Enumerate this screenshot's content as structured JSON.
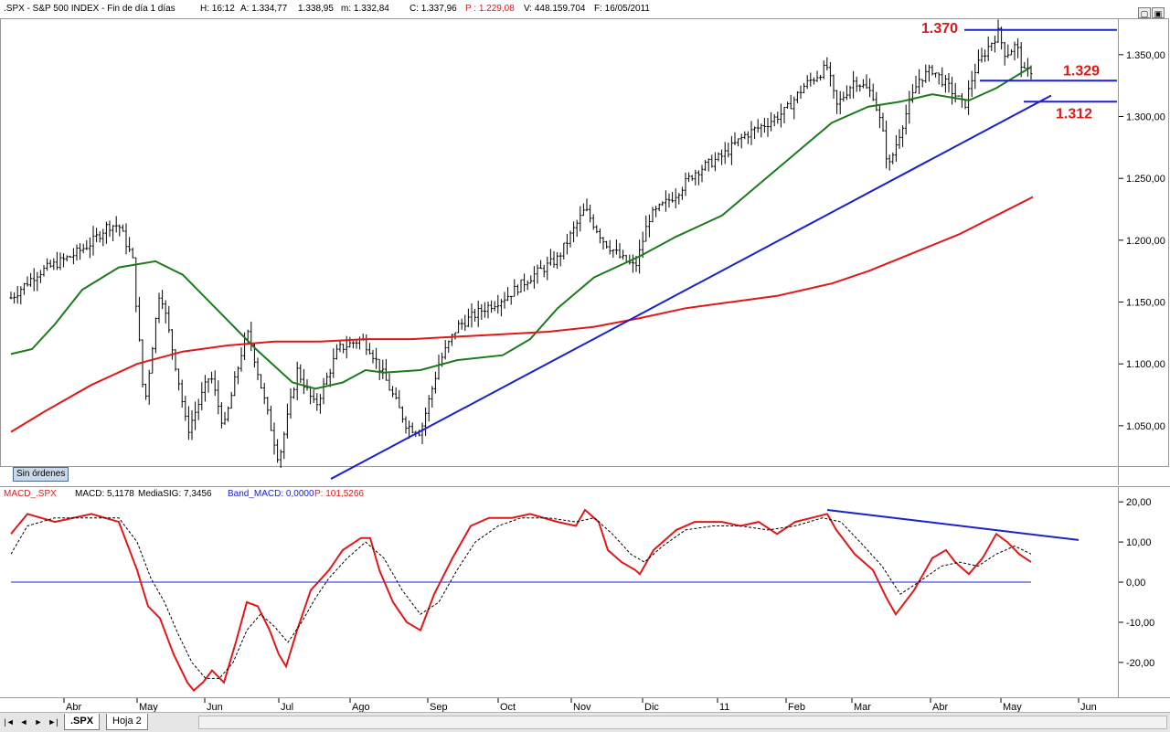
{
  "price_header": {
    "symbol": ".SPX - S&P 500 INDEX - Fin de día 1 días",
    "time": "H: 16:12",
    "open": "A: 1.334,77",
    "high": "1.338,95",
    "low": "m: 1.332,84",
    "close": "C: 1.337,96",
    "pointer": "P : 1.229,08",
    "volume": "V: 448.159.704",
    "date": "F: 16/05/2011"
  },
  "macd_header": {
    "indicator": "MACD_.SPX",
    "macd": "MACD: 5,1178",
    "signal": "MediaSIG: 7,3456",
    "band": "Band_MACD: 0,0000",
    "pointer": "P: 101,5266"
  },
  "orders_badge": "Sin órdenes",
  "sheet_tabs": [
    ".SPX",
    "Hoja 2"
  ],
  "nav_buttons": [
    "|◄",
    "◄",
    "►",
    "►|"
  ],
  "window_buttons": [
    "▢",
    "▣"
  ],
  "colors": {
    "ma_fast": "#1c7a1c",
    "ma_slow": "#e01818",
    "trendline": "#1a22cc",
    "macd": "#e01818",
    "signal": "#000000",
    "annotation": "#e01818"
  },
  "chart_data": [
    {
      "type": "candlestick",
      "title": "",
      "x": [
        "Abr",
        "May",
        "Jun",
        "Jul",
        "Ago",
        "Sep",
        "Oct",
        "Nov",
        "Dic",
        "11",
        "Feb",
        "Mar",
        "Abr",
        "May",
        "Jun"
      ],
      "ylim": [
        1010,
        1375
      ],
      "y_ticks": [
        "1.050,00",
        "1.100,00",
        "1.150,00",
        "1.200,00",
        "1.250,00",
        "1.300,00",
        "1.350,00"
      ],
      "y_tick_values": [
        1050,
        1100,
        1150,
        1200,
        1250,
        1300,
        1350
      ],
      "close_path": [
        [
          0,
          1145
        ],
        [
          40,
          1173
        ],
        [
          80,
          1188
        ],
        [
          100,
          1198
        ],
        [
          118,
          1212
        ],
        [
          130,
          1212
        ],
        [
          145,
          1185
        ],
        [
          158,
          1065
        ],
        [
          175,
          1162
        ],
        [
          195,
          1088
        ],
        [
          205,
          1045
        ],
        [
          230,
          1092
        ],
        [
          245,
          1048
        ],
        [
          265,
          1112
        ],
        [
          272,
          1125
        ],
        [
          290,
          1068
        ],
        [
          305,
          1022
        ],
        [
          325,
          1095
        ],
        [
          345,
          1065
        ],
        [
          370,
          1112
        ],
        [
          395,
          1120
        ],
        [
          405,
          1112
        ],
        [
          420,
          1090
        ],
        [
          445,
          1050
        ],
        [
          460,
          1045
        ],
        [
          480,
          1100
        ],
        [
          500,
          1130
        ],
        [
          530,
          1145
        ],
        [
          555,
          1155
        ],
        [
          580,
          1170
        ],
        [
          610,
          1185
        ],
        [
          640,
          1225
        ],
        [
          660,
          1200
        ],
        [
          680,
          1185
        ],
        [
          695,
          1178
        ],
        [
          710,
          1218
        ],
        [
          740,
          1238
        ],
        [
          760,
          1255
        ],
        [
          790,
          1268
        ],
        [
          815,
          1285
        ],
        [
          840,
          1295
        ],
        [
          860,
          1305
        ],
        [
          880,
          1325
        ],
        [
          905,
          1340
        ],
        [
          915,
          1308
        ],
        [
          935,
          1330
        ],
        [
          955,
          1318
        ],
        [
          965,
          1290
        ],
        [
          972,
          1258
        ],
        [
          990,
          1300
        ],
        [
          1005,
          1330
        ],
        [
          1020,
          1338
        ],
        [
          1040,
          1322
        ],
        [
          1055,
          1308
        ],
        [
          1065,
          1335
        ],
        [
          1080,
          1355
        ],
        [
          1092,
          1368
        ],
        [
          1100,
          1350
        ],
        [
          1112,
          1358
        ],
        [
          1120,
          1335
        ],
        [
          1130,
          1338
        ]
      ],
      "overlays": [
        {
          "name": "",
          "color": "#1c7a1c",
          "points": [
            [
              12,
              1108
            ],
            [
              35,
              1112
            ],
            [
              60,
              1132
            ],
            [
              90,
              1160
            ],
            [
              130,
              1178
            ],
            [
              170,
              1183
            ],
            [
              200,
              1172
            ],
            [
              240,
              1142
            ],
            [
              280,
              1112
            ],
            [
              320,
              1085
            ],
            [
              345,
              1080
            ],
            [
              375,
              1085
            ],
            [
              400,
              1095
            ],
            [
              420,
              1093
            ],
            [
              460,
              1095
            ],
            [
              500,
              1103
            ],
            [
              550,
              1107
            ],
            [
              580,
              1120
            ],
            [
              610,
              1145
            ],
            [
              650,
              1170
            ],
            [
              700,
              1187
            ],
            [
              740,
              1203
            ],
            [
              790,
              1220
            ],
            [
              830,
              1245
            ],
            [
              870,
              1270
            ],
            [
              910,
              1295
            ],
            [
              950,
              1308
            ],
            [
              985,
              1312
            ],
            [
              1020,
              1318
            ],
            [
              1060,
              1313
            ],
            [
              1090,
              1323
            ],
            [
              1110,
              1332
            ],
            [
              1128,
              1340
            ]
          ]
        },
        {
          "name": "",
          "color": "#e01818",
          "points": [
            [
              12,
              1045
            ],
            [
              50,
              1062
            ],
            [
              100,
              1083
            ],
            [
              150,
              1100
            ],
            [
              200,
              1110
            ],
            [
              250,
              1115
            ],
            [
              300,
              1118
            ],
            [
              350,
              1118
            ],
            [
              400,
              1120
            ],
            [
              450,
              1120
            ],
            [
              500,
              1122
            ],
            [
              550,
              1124
            ],
            [
              600,
              1126
            ],
            [
              650,
              1130
            ],
            [
              700,
              1137
            ],
            [
              750,
              1145
            ],
            [
              800,
              1150
            ],
            [
              850,
              1155
            ],
            [
              880,
              1160
            ],
            [
              910,
              1165
            ],
            [
              950,
              1175
            ],
            [
              1000,
              1190
            ],
            [
              1050,
              1205
            ],
            [
              1090,
              1220
            ],
            [
              1130,
              1235
            ]
          ]
        }
      ],
      "trendlines": [
        {
          "color": "#1a22cc",
          "points": [
            [
              362,
              1007
            ],
            [
              1150,
              1317
            ]
          ]
        },
        {
          "color": "#1a22cc",
          "points": [
            [
              1055,
              1370
            ],
            [
              1222,
              1370
            ]
          ]
        },
        {
          "color": "#1a22cc",
          "points": [
            [
              1072,
              1329
            ],
            [
              1222,
              1329
            ]
          ]
        },
        {
          "color": "#1a22cc",
          "points": [
            [
              1120,
              1312
            ],
            [
              1222,
              1312
            ]
          ]
        }
      ],
      "annotations": [
        {
          "text": "1.370",
          "value": 1370
        },
        {
          "text": "1.329",
          "value": 1329
        },
        {
          "text": "1.312",
          "value": 1312
        }
      ]
    },
    {
      "type": "line",
      "title": "",
      "ylim": [
        -28,
        23
      ],
      "y_ticks": [
        "20,00",
        "10,00",
        "0,00",
        "-10,00",
        "-20,00"
      ],
      "y_tick_values": [
        20,
        10,
        0,
        -10,
        -20
      ],
      "series": [
        {
          "name": "MACD",
          "color": "#e01818",
          "points": [
            [
              12,
              12
            ],
            [
              30,
              17
            ],
            [
              60,
              15
            ],
            [
              100,
              17
            ],
            [
              130,
              15
            ],
            [
              150,
              3
            ],
            [
              162,
              -6
            ],
            [
              175,
              -9
            ],
            [
              190,
              -18
            ],
            [
              205,
              -25
            ],
            [
              212,
              -27
            ],
            [
              222,
              -25
            ],
            [
              232,
              -22
            ],
            [
              245,
              -25
            ],
            [
              258,
              -15
            ],
            [
              270,
              -5
            ],
            [
              282,
              -6
            ],
            [
              295,
              -12
            ],
            [
              305,
              -18
            ],
            [
              313,
              -21
            ],
            [
              325,
              -12
            ],
            [
              340,
              -2
            ],
            [
              360,
              3
            ],
            [
              375,
              8
            ],
            [
              395,
              11
            ],
            [
              405,
              11
            ],
            [
              415,
              3
            ],
            [
              430,
              -5
            ],
            [
              445,
              -10
            ],
            [
              460,
              -12
            ],
            [
              475,
              -3
            ],
            [
              495,
              6
            ],
            [
              515,
              14
            ],
            [
              535,
              16
            ],
            [
              560,
              16
            ],
            [
              580,
              17
            ],
            [
              610,
              15
            ],
            [
              630,
              14
            ],
            [
              640,
              18
            ],
            [
              655,
              15
            ],
            [
              665,
              8
            ],
            [
              680,
              5
            ],
            [
              695,
              3
            ],
            [
              700,
              2
            ],
            [
              715,
              8
            ],
            [
              740,
              13
            ],
            [
              760,
              15
            ],
            [
              790,
              15
            ],
            [
              810,
              14
            ],
            [
              830,
              15
            ],
            [
              850,
              12
            ],
            [
              870,
              15
            ],
            [
              905,
              17
            ],
            [
              915,
              13
            ],
            [
              935,
              7
            ],
            [
              955,
              3
            ],
            [
              970,
              -4
            ],
            [
              980,
              -8
            ],
            [
              1000,
              -2
            ],
            [
              1020,
              6
            ],
            [
              1035,
              8
            ],
            [
              1045,
              5
            ],
            [
              1060,
              2
            ],
            [
              1075,
              6
            ],
            [
              1090,
              12
            ],
            [
              1102,
              10
            ],
            [
              1115,
              7
            ],
            [
              1128,
              5
            ]
          ]
        },
        {
          "name": "MediaSIG",
          "color": "#000000",
          "points": [
            [
              12,
              7
            ],
            [
              30,
              14
            ],
            [
              60,
              16
            ],
            [
              100,
              16
            ],
            [
              130,
              16
            ],
            [
              150,
              10
            ],
            [
              165,
              1
            ],
            [
              180,
              -5
            ],
            [
              195,
              -13
            ],
            [
              210,
              -20
            ],
            [
              225,
              -24
            ],
            [
              240,
              -24
            ],
            [
              255,
              -20
            ],
            [
              270,
              -12
            ],
            [
              285,
              -8
            ],
            [
              300,
              -11
            ],
            [
              315,
              -15
            ],
            [
              330,
              -10
            ],
            [
              345,
              -4
            ],
            [
              360,
              1
            ],
            [
              380,
              6
            ],
            [
              400,
              10
            ],
            [
              420,
              6
            ],
            [
              440,
              -2
            ],
            [
              460,
              -8
            ],
            [
              480,
              -5
            ],
            [
              500,
              3
            ],
            [
              520,
              10
            ],
            [
              545,
              14
            ],
            [
              570,
              16
            ],
            [
              600,
              16
            ],
            [
              630,
              15
            ],
            [
              650,
              16
            ],
            [
              670,
              12
            ],
            [
              690,
              7
            ],
            [
              705,
              5
            ],
            [
              725,
              9
            ],
            [
              750,
              13
            ],
            [
              780,
              14
            ],
            [
              810,
              14
            ],
            [
              840,
              13
            ],
            [
              870,
              14
            ],
            [
              900,
              16
            ],
            [
              920,
              15
            ],
            [
              945,
              9
            ],
            [
              965,
              4
            ],
            [
              985,
              -3
            ],
            [
              1005,
              0
            ],
            [
              1030,
              4
            ],
            [
              1050,
              5
            ],
            [
              1070,
              4
            ],
            [
              1090,
              7
            ],
            [
              1110,
              9
            ],
            [
              1128,
              7
            ]
          ]
        }
      ],
      "trendlines": [
        {
          "color": "#1a22cc",
          "points": [
            [
              905,
              18
            ],
            [
              1180,
              10.5
            ]
          ]
        },
        {
          "color": "#1a22cc",
          "points": [
            [
              12,
              0
            ],
            [
              1128,
              0
            ]
          ]
        }
      ]
    }
  ]
}
